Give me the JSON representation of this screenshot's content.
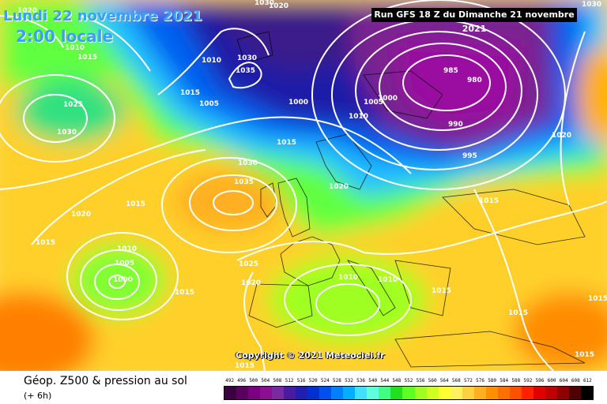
{
  "header": {
    "date_label": "Lundi 22 novembre 2021",
    "time_label": "2:00 locale",
    "run_label": "Run GFS 18 Z du Dimanche 21 novembre 2021"
  },
  "copyright": "Copyright © 2021 Meteociel.fr",
  "footer": {
    "title": "Géop. Z500 & pression au sol",
    "subtitle": "(+ 6h)"
  },
  "legend": {
    "ticks": [
      "492",
      "496",
      "500",
      "504",
      "508",
      "512",
      "516",
      "520",
      "524",
      "528",
      "532",
      "536",
      "540",
      "544",
      "548",
      "552",
      "556",
      "560",
      "564",
      "568",
      "572",
      "576",
      "580",
      "584",
      "588",
      "592",
      "596",
      "600",
      "604",
      "608",
      "612"
    ],
    "colors": [
      "#3a0040",
      "#5a0060",
      "#7a0080",
      "#8a1090",
      "#7a2aa0",
      "#4a1aa0",
      "#2020b0",
      "#0030d0",
      "#0050f0",
      "#0080ff",
      "#00b0ff",
      "#40e0ff",
      "#60ffe0",
      "#40ff80",
      "#20e020",
      "#60ff20",
      "#a0ff20",
      "#d0ff20",
      "#ffff30",
      "#fff060",
      "#ffd040",
      "#ffb020",
      "#ff9000",
      "#ff7000",
      "#ff5000",
      "#ff2000",
      "#e00000",
      "#c00000",
      "#900000",
      "#500000",
      "#000000"
    ]
  },
  "isobars": [
    {
      "text": "1030"
    },
    {
      "text": "1020"
    },
    {
      "text": "1020"
    },
    {
      "text": "1010"
    },
    {
      "text": "1015"
    },
    {
      "text": "1025"
    },
    {
      "text": "1030"
    },
    {
      "text": "1010"
    },
    {
      "text": "1015"
    },
    {
      "text": "1005"
    },
    {
      "text": "1030"
    },
    {
      "text": "1035"
    },
    {
      "text": "1000"
    },
    {
      "text": "1005"
    },
    {
      "text": "1000"
    },
    {
      "text": "985"
    },
    {
      "text": "980"
    },
    {
      "text": "990"
    },
    {
      "text": "995"
    },
    {
      "text": "1010"
    },
    {
      "text": "1015"
    },
    {
      "text": "1030"
    },
    {
      "text": "1035"
    },
    {
      "text": "1015"
    },
    {
      "text": "1020"
    },
    {
      "text": "1020"
    },
    {
      "text": "1015"
    },
    {
      "text": "1010"
    },
    {
      "text": "1005"
    },
    {
      "text": "1000"
    },
    {
      "text": "1015"
    },
    {
      "text": "1025"
    },
    {
      "text": "1020"
    },
    {
      "text": "1010"
    },
    {
      "text": "1010"
    },
    {
      "text": "1015"
    },
    {
      "text": "1015"
    },
    {
      "text": "1020"
    },
    {
      "text": "1015"
    },
    {
      "text": "1015"
    },
    {
      "text": "1015"
    },
    {
      "text": "1015"
    },
    {
      "text": "1030"
    }
  ]
}
